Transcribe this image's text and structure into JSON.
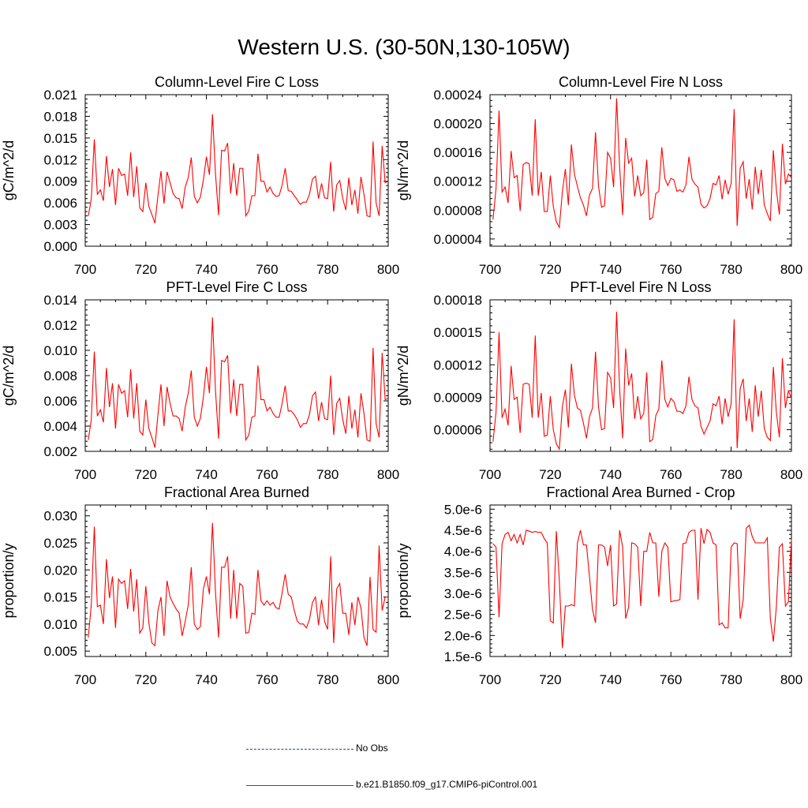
{
  "page": {
    "title": "Western U.S. (30-50N,130-105W)"
  },
  "legend": {
    "obs_label": "No Obs",
    "obs_color": "#2d3f9a",
    "run_label": "b.e21.B1850.f09_g17.CMIP6-piControl.001",
    "run_color": "#ff0000"
  },
  "chart_data": [
    {
      "type": "line",
      "title": "Column-Level Fire C Loss",
      "ylabel": "gC/m^2/d",
      "xlim": [
        700,
        800
      ],
      "ylim": [
        0,
        0.021
      ],
      "xticks": [
        700,
        720,
        740,
        760,
        780,
        800
      ],
      "yticks": [
        0.0,
        0.003,
        0.006,
        0.009,
        0.012,
        0.015,
        0.018,
        0.021
      ],
      "ytick_labels": [
        "0.000",
        "0.003",
        "0.006",
        "0.009",
        "0.012",
        "0.015",
        "0.018",
        "0.021"
      ],
      "x_start": 701,
      "series": [
        {
          "color": "#ff0000",
          "values": [
            0.0042,
            0.0065,
            0.0148,
            0.0072,
            0.0078,
            0.0063,
            0.0125,
            0.0082,
            0.0107,
            0.0057,
            0.0108,
            0.0098,
            0.01,
            0.007,
            0.013,
            0.0068,
            0.0111,
            0.0053,
            0.0048,
            0.0088,
            0.0055,
            0.0044,
            0.0032,
            0.007,
            0.0104,
            0.0059,
            0.0103,
            0.0088,
            0.0073,
            0.0067,
            0.0066,
            0.0052,
            0.0082,
            0.0095,
            0.0123,
            0.0069,
            0.006,
            0.0068,
            0.0092,
            0.0124,
            0.0099,
            0.0183,
            0.01,
            0.0043,
            0.0133,
            0.0132,
            0.0143,
            0.0073,
            0.0115,
            0.007,
            0.0108,
            0.0108,
            0.0042,
            0.0049,
            0.007,
            0.007,
            0.0128,
            0.009,
            0.009,
            0.0075,
            0.0082,
            0.0073,
            0.0069,
            0.007,
            0.0085,
            0.0108,
            0.0077,
            0.0076,
            0.007,
            0.0064,
            0.0058,
            0.0061,
            0.0061,
            0.0072,
            0.0093,
            0.0097,
            0.0066,
            0.0087,
            0.0067,
            0.0066,
            0.0117,
            0.0048,
            0.0085,
            0.0091,
            0.0066,
            0.005,
            0.0095,
            0.0057,
            0.0078,
            0.0045,
            0.0096,
            0.0072,
            0.0042,
            0.0041,
            0.0145,
            0.006,
            0.0042,
            0.0139,
            0.0088,
            0.009
          ]
        }
      ]
    },
    {
      "type": "line",
      "title": "Column-Level Fire N Loss",
      "ylabel": "gN/m^2/d",
      "xlim": [
        700,
        800
      ],
      "ylim": [
        3e-05,
        0.00024
      ],
      "xticks": [
        700,
        720,
        740,
        760,
        780,
        800
      ],
      "yticks": [
        4e-05,
        8e-05,
        0.00012,
        0.00016,
        0.0002,
        0.00024
      ],
      "ytick_labels": [
        "0.00004",
        "0.00008",
        "0.00012",
        "0.00016",
        "0.00020",
        "0.00024"
      ],
      "x_start": 701,
      "series": [
        {
          "color": "#ff0000",
          "values": [
            6.7e-05,
            0.00011,
            0.000218,
            0.000105,
            0.000112,
            9e-05,
            0.000162,
            0.000125,
            0.000128,
            7.9e-05,
            0.000143,
            0.000146,
            0.000144,
            0.0001,
            0.000206,
            0.0001,
            0.000133,
            7.8e-05,
            7.8e-05,
            0.000128,
            8.5e-05,
            6.4e-05,
            5.6e-05,
            0.000105,
            0.000137,
            8.7e-05,
            0.000171,
            0.00013,
            0.000113,
            9.7e-05,
            8.7e-05,
            7.2e-05,
            0.000101,
            0.00011,
            0.000188,
            0.000113,
            8.4e-05,
            8.6e-05,
            0.00016,
            0.000152,
            0.000112,
            0.000235,
            0.00014,
            7.3e-05,
            0.00018,
            0.000145,
            0.000152,
            9.9e-05,
            0.000128,
            0.0001,
            0.000104,
            0.00015,
            6.7e-05,
            7e-05,
            0.000103,
            0.000106,
            0.000167,
            0.000124,
            0.000114,
            0.000124,
            0.000122,
            0.000106,
            0.000108,
            0.000105,
            0.000115,
            0.000154,
            0.000123,
            0.000116,
            0.000112,
            8.8e-05,
            8.3e-05,
            8.6e-05,
            9.6e-05,
            0.000117,
            0.000115,
            0.000128,
            9.5e-05,
            0.000122,
            0.000102,
            0.000117,
            0.00022,
            5.8e-05,
            0.000138,
            0.000147,
            9.6e-05,
            0.000123,
            8.1e-05,
            0.00014,
            0.000102,
            0.000136,
            8.7e-05,
            7.5e-05,
            6.5e-05,
            0.000163,
            0.000108,
            7.4e-05,
            0.000172,
            0.000116,
            0.00013,
            0.000125
          ]
        }
      ]
    },
    {
      "type": "line",
      "title": "PFT-Level Fire C Loss",
      "ylabel": "gC/m^2/d",
      "xlim": [
        700,
        800
      ],
      "ylim": [
        0.002,
        0.014
      ],
      "xticks": [
        700,
        720,
        740,
        760,
        780,
        800
      ],
      "yticks": [
        0.002,
        0.004,
        0.006,
        0.008,
        0.01,
        0.012,
        0.014
      ],
      "ytick_labels": [
        "0.002",
        "0.004",
        "0.006",
        "0.008",
        "0.010",
        "0.012",
        "0.014"
      ],
      "x_start": 701,
      "series": [
        {
          "color": "#ff0000",
          "values": [
            0.0029,
            0.0045,
            0.0099,
            0.0048,
            0.0053,
            0.0043,
            0.0086,
            0.0055,
            0.0074,
            0.0038,
            0.0073,
            0.0066,
            0.0068,
            0.0047,
            0.0085,
            0.0046,
            0.0074,
            0.0036,
            0.0033,
            0.0061,
            0.0038,
            0.0031,
            0.0023,
            0.0049,
            0.0073,
            0.004,
            0.0071,
            0.0058,
            0.0048,
            0.0048,
            0.0046,
            0.0036,
            0.0055,
            0.0066,
            0.0084,
            0.0047,
            0.004,
            0.0046,
            0.0063,
            0.0087,
            0.0066,
            0.0126,
            0.0068,
            0.003,
            0.0092,
            0.0091,
            0.0096,
            0.005,
            0.0077,
            0.0048,
            0.0073,
            0.0073,
            0.0029,
            0.0033,
            0.0047,
            0.0048,
            0.0088,
            0.0061,
            0.0061,
            0.0052,
            0.0055,
            0.005,
            0.0047,
            0.0047,
            0.0058,
            0.0072,
            0.0052,
            0.0052,
            0.0049,
            0.0045,
            0.0039,
            0.0042,
            0.0042,
            0.0049,
            0.0064,
            0.0067,
            0.0044,
            0.0059,
            0.0046,
            0.0045,
            0.008,
            0.0033,
            0.0058,
            0.0062,
            0.0045,
            0.0034,
            0.0064,
            0.0038,
            0.0053,
            0.0031,
            0.0066,
            0.005,
            0.0029,
            0.0028,
            0.0102,
            0.0042,
            0.0031,
            0.0098,
            0.0061,
            0.0062
          ]
        }
      ]
    },
    {
      "type": "line",
      "title": "PFT-Level Fire N Loss",
      "ylabel": "gN/m^2/d",
      "xlim": [
        700,
        800
      ],
      "ylim": [
        4e-05,
        0.00018
      ],
      "xticks": [
        700,
        720,
        740,
        760,
        780,
        800
      ],
      "yticks": [
        6e-05,
        9e-05,
        0.00012,
        0.00015,
        0.00018
      ],
      "ytick_labels": [
        "0.00006",
        "0.00009",
        "0.00012",
        "0.00015",
        "0.00018"
      ],
      "x_start": 701,
      "series": [
        {
          "color": "#ff0000",
          "values": [
            4.9e-05,
            7.6e-05,
            0.00015,
            7.1e-05,
            7.9e-05,
            6.4e-05,
            0.000119,
            8.8e-05,
            9e-05,
            5.7e-05,
            0.000102,
            0.000103,
            0.000102,
            7.1e-05,
            0.000147,
            7.1e-05,
            9.4e-05,
            5.4e-05,
            5.5e-05,
            9.1e-05,
            6e-05,
            4.7e-05,
            4.2e-05,
            8.1e-05,
            9.7e-05,
            6.2e-05,
            0.000121,
            9.2e-05,
            8e-05,
            7.8e-05,
            6.6e-05,
            5.2e-05,
            7.2e-05,
            8e-05,
            0.000132,
            8.1e-05,
            6e-05,
            6.1e-05,
            0.000113,
            0.000108,
            8e-05,
            0.000169,
            9.8e-05,
            5.2e-05,
            0.000135,
            0.000101,
            0.000112,
            7e-05,
            9.1e-05,
            7e-05,
            7.5e-05,
            0.000113,
            4.9e-05,
            5.1e-05,
            7.3e-05,
            7.9e-05,
            0.000124,
            8.8e-05,
            8.1e-05,
            8.9e-05,
            8.6e-05,
            7.7e-05,
            7.7e-05,
            7.5e-05,
            8.2e-05,
            0.000109,
            8.8e-05,
            8.2e-05,
            8e-05,
            6.3e-05,
            5.6e-05,
            6.2e-05,
            6.8e-05,
            8.4e-05,
            8.2e-05,
            9.1e-05,
            6.5e-05,
            8.9e-05,
            7.2e-05,
            8.4e-05,
            0.000162,
            4.3e-05,
            9.8e-05,
            0.000107,
            6.8e-05,
            8.9e-05,
            5.8e-05,
            0.000101,
            7.2e-05,
            9.6e-05,
            6.1e-05,
            5.3e-05,
            5e-05,
            0.000118,
            7.6e-05,
            5.3e-05,
            0.000126,
            8e-05,
            9.6e-05,
            8.9e-05
          ]
        }
      ]
    },
    {
      "type": "line",
      "title": "Fractional Area Burned",
      "ylabel": "proportion/y",
      "xlim": [
        700,
        800
      ],
      "ylim": [
        0.004,
        0.032
      ],
      "xticks": [
        700,
        720,
        740,
        760,
        780,
        800
      ],
      "yticks": [
        0.005,
        0.01,
        0.015,
        0.02,
        0.025,
        0.03
      ],
      "ytick_labels": [
        "0.005",
        "0.010",
        "0.015",
        "0.020",
        "0.025",
        "0.030"
      ],
      "x_start": 701,
      "series": [
        {
          "color": "#ff0000",
          "values": [
            0.0075,
            0.0135,
            0.028,
            0.0132,
            0.0135,
            0.01,
            0.022,
            0.0148,
            0.0188,
            0.0093,
            0.0183,
            0.0175,
            0.018,
            0.0128,
            0.0202,
            0.0123,
            0.0183,
            0.0083,
            0.0093,
            0.017,
            0.0102,
            0.0065,
            0.006,
            0.0125,
            0.015,
            0.0078,
            0.018,
            0.015,
            0.0138,
            0.0128,
            0.012,
            0.0078,
            0.0105,
            0.0135,
            0.0205,
            0.01,
            0.009,
            0.0095,
            0.0165,
            0.0188,
            0.0155,
            0.0287,
            0.0158,
            0.0075,
            0.0205,
            0.0205,
            0.0225,
            0.011,
            0.02,
            0.011,
            0.0175,
            0.017,
            0.0083,
            0.0085,
            0.012,
            0.0118,
            0.02,
            0.0143,
            0.0135,
            0.0143,
            0.0135,
            0.014,
            0.013,
            0.0128,
            0.0158,
            0.0192,
            0.0155,
            0.015,
            0.0125,
            0.0105,
            0.01,
            0.01,
            0.0093,
            0.0108,
            0.014,
            0.015,
            0.0098,
            0.0145,
            0.0105,
            0.009,
            0.0225,
            0.0065,
            0.0165,
            0.0175,
            0.012,
            0.012,
            0.008,
            0.014,
            0.0098,
            0.015,
            0.013,
            0.0075,
            0.006,
            0.0187,
            0.009,
            0.0085,
            0.0245,
            0.0125,
            0.015,
            0.015
          ]
        }
      ]
    },
    {
      "type": "line",
      "title": "Fractional Area Burned - Crop",
      "ylabel": "proportion/y",
      "xlim": [
        700,
        800
      ],
      "ylim": [
        1.5e-06,
        5.1e-06
      ],
      "xticks": [
        700,
        720,
        740,
        760,
        780,
        800
      ],
      "yticks": [
        1.5e-06,
        2e-06,
        2.5e-06,
        3e-06,
        3.5e-06,
        4e-06,
        4.5e-06,
        5e-06
      ],
      "ytick_labels": [
        "1.5e-6",
        "2.0e-6",
        "2.5e-6",
        "3.0e-6",
        "3.5e-6",
        "4.0e-6",
        "4.5e-6",
        "5.0e-6"
      ],
      "x_start": 701,
      "series": [
        {
          "color": "#ff0000",
          "values": [
            4.18e-06,
            4.1e-06,
            2.43e-06,
            4.18e-06,
            4.4e-06,
            4.45e-06,
            4.25e-06,
            4.4e-06,
            4.2e-06,
            4.4e-06,
            4.15e-06,
            4.5e-06,
            4.48e-06,
            4.45e-06,
            4.47e-06,
            4.45e-06,
            4.45e-06,
            4.3e-06,
            4.2e-06,
            2.35e-06,
            2.3e-06,
            4.48e-06,
            3.3e-06,
            1.7e-06,
            2.7e-06,
            2.7e-06,
            2.73e-06,
            2.7e-06,
            4.2e-06,
            4.5e-06,
            4.15e-06,
            4.15e-06,
            3.4e-06,
            2.62e-06,
            2.3e-06,
            4.15e-06,
            4.15e-06,
            4.1e-06,
            3.65e-06,
            4.15e-06,
            2.7e-06,
            2.75e-06,
            4.5e-06,
            4.1e-06,
            2.4e-06,
            2.68e-06,
            4.2e-06,
            4.18e-06,
            4.1e-06,
            2.7e-06,
            4e-06,
            4e-06,
            4.45e-06,
            4.2e-06,
            4.2e-06,
            2.92e-06,
            4e-06,
            4.2e-06,
            4.1e-06,
            2.8e-06,
            2.82e-06,
            2.83e-06,
            2.85e-06,
            4.18e-06,
            4.2e-06,
            4.45e-06,
            4.5e-06,
            4.5e-06,
            2.85e-06,
            4.55e-06,
            4.18e-06,
            4.52e-06,
            4.45e-06,
            4.2e-06,
            4.15e-06,
            2.25e-06,
            2.3e-06,
            2.18e-06,
            2.18e-06,
            4.1e-06,
            4.2e-06,
            4.18e-06,
            2.4e-06,
            2.85e-06,
            4.55e-06,
            4.62e-06,
            4.35e-06,
            4.2e-06,
            4.2e-06,
            4.2e-06,
            4.2e-06,
            4.32e-06,
            2.4e-06,
            1.85e-06,
            2.68e-06,
            4.1e-06,
            4.18e-06,
            2.7e-06,
            2.8e-06,
            4.3e-06
          ]
        }
      ]
    }
  ]
}
